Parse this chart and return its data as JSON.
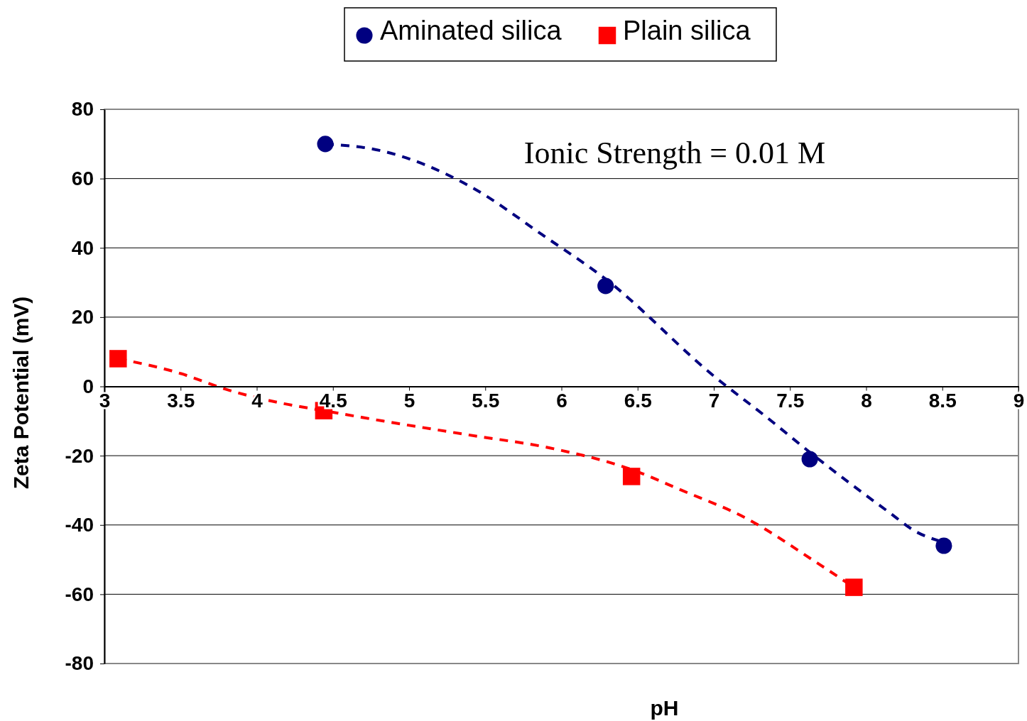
{
  "chart_data": {
    "type": "scatter",
    "xlabel": "pH",
    "ylabel": "Zeta Potential  (mV)",
    "annotations": [
      "Ionic Strength = 0.01 M"
    ],
    "xlim": [
      3,
      9
    ],
    "xticks": [
      3,
      3.5,
      4,
      4.5,
      5,
      5.5,
      6,
      6.5,
      7,
      7.5,
      8,
      8.5,
      9
    ],
    "ylim": [
      -80,
      80
    ],
    "yticks": [
      -80,
      -60,
      -40,
      -20,
      0,
      20,
      40,
      60,
      80
    ],
    "grid": "y",
    "legend": "top",
    "series": [
      {
        "name": "Aminated silica",
        "type": "scatter",
        "marker": "circle",
        "color": "#000080",
        "x": [
          4.45,
          6.29,
          7.63,
          8.51
        ],
        "values": [
          70,
          29,
          -21,
          -46
        ]
      },
      {
        "name": "Plain silica",
        "type": "scatter",
        "marker": "square",
        "color": "#ff0000",
        "x": [
          3.09,
          4.44,
          6.46,
          7.92
        ],
        "values": [
          8,
          -7,
          -26,
          -58
        ]
      },
      {
        "type": "line",
        "line_style": "dashed",
        "marker": "none",
        "color": "#000080",
        "x": [
          4.45,
          4.82,
          5.39,
          5.9,
          6.29,
          7.0,
          7.35,
          7.63,
          8.14,
          8.33,
          8.51
        ],
        "values": [
          70,
          68,
          58,
          43,
          31,
          3,
          -9,
          -19,
          -36,
          -42,
          -45
        ]
      },
      {
        "type": "line",
        "line_style": "dashed",
        "marker": "none",
        "color": "#ff0000",
        "x": [
          3.09,
          3.48,
          3.81,
          4.18,
          4.44,
          4.83,
          5.39,
          5.95,
          6.46,
          6.79,
          7.21,
          7.68,
          7.92
        ],
        "values": [
          8,
          4,
          -1,
          -5,
          -7,
          -10,
          -14,
          -18,
          -24,
          -30,
          -38,
          -51,
          -58
        ]
      }
    ]
  }
}
